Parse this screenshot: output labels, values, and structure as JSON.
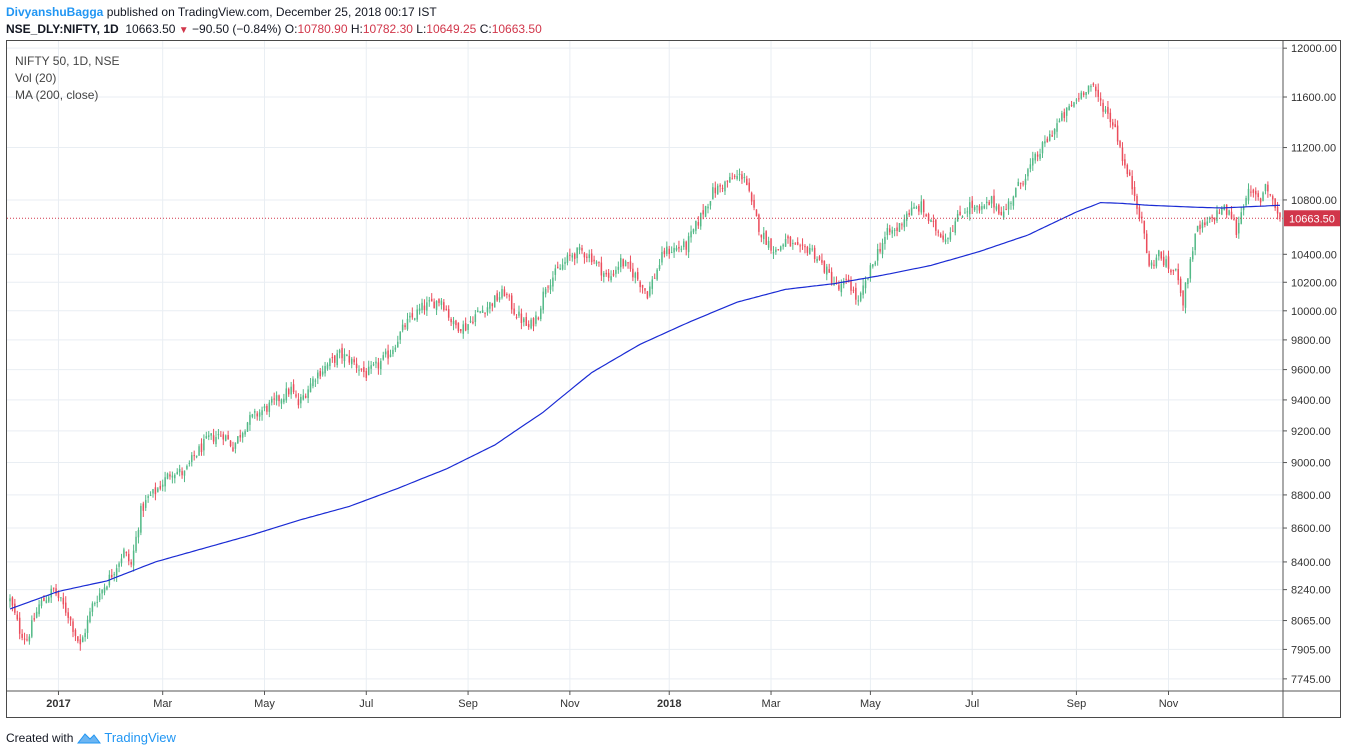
{
  "header": {
    "author": "DivyanshuBagga",
    "published": "published on TradingView.com, December 25, 2018 00:17 IST",
    "symbol": "NSE_DLY:NIFTY, 1D",
    "last": "10663.50",
    "change_arrow": "▼",
    "change": "−90.50 (−0.84%)",
    "o_label": "O:",
    "o_value": "10780.90",
    "h_label": "H:",
    "h_value": "10782.30",
    "l_label": "L:",
    "l_value": "10649.25",
    "c_label": "C:",
    "c_value": "10663.50"
  },
  "legend": {
    "line1": "NIFTY 50, 1D, NSE",
    "line2": "Vol (20)",
    "line3": "MA (200, close)"
  },
  "footer": {
    "created_with": "Created with",
    "brand": "TradingView"
  },
  "colors": {
    "up": "#53b987",
    "down": "#eb4d5c",
    "ma": "#1a2bd4",
    "grid": "#e9eef3",
    "price_line": "#d1364a"
  },
  "chart_data": {
    "type": "candlestick",
    "title": "NIFTY 50, 1D, NSE",
    "y_scale": "log",
    "ylim": [
      7680,
      12060
    ],
    "y_ticks": [
      "12000.00",
      "11600.00",
      "11200.00",
      "10800.00",
      "10400.00",
      "10200.00",
      "10000.00",
      "9800.00",
      "9600.00",
      "9400.00",
      "9200.00",
      "9000.00",
      "8800.00",
      "8600.00",
      "8400.00",
      "8240.00",
      "8065.00",
      "7905.00",
      "7745.00"
    ],
    "x_ticks": [
      "2017",
      "Mar",
      "May",
      "Jul",
      "Sep",
      "Nov",
      "2018",
      "Mar",
      "May",
      "Jul",
      "Sep",
      "Nov"
    ],
    "x_tick_days": [
      20,
      63,
      105,
      147,
      189,
      231,
      272,
      314,
      355,
      397,
      440,
      478
    ],
    "n_days": 525,
    "last_price": "10663.50",
    "close_anchors": [
      [
        0,
        8180
      ],
      [
        4,
        8010
      ],
      [
        7,
        7960
      ],
      [
        12,
        8150
      ],
      [
        18,
        8240
      ],
      [
        24,
        8100
      ],
      [
        29,
        7920
      ],
      [
        34,
        8150
      ],
      [
        38,
        8240
      ],
      [
        42,
        8330
      ],
      [
        47,
        8460
      ],
      [
        50,
        8380
      ],
      [
        54,
        8700
      ],
      [
        57,
        8780
      ],
      [
        60,
        8820
      ],
      [
        67,
        8950
      ],
      [
        72,
        8930
      ],
      [
        76,
        9040
      ],
      [
        82,
        9150
      ],
      [
        88,
        9180
      ],
      [
        92,
        9100
      ],
      [
        98,
        9260
      ],
      [
        103,
        9320
      ],
      [
        107,
        9360
      ],
      [
        112,
        9420
      ],
      [
        116,
        9470
      ],
      [
        119,
        9370
      ],
      [
        126,
        9560
      ],
      [
        136,
        9700
      ],
      [
        140,
        9670
      ],
      [
        147,
        9570
      ],
      [
        152,
        9630
      ],
      [
        157,
        9720
      ],
      [
        163,
        9900
      ],
      [
        170,
        10020
      ],
      [
        178,
        10080
      ],
      [
        183,
        9900
      ],
      [
        188,
        9890
      ],
      [
        192,
        9970
      ],
      [
        197,
        10030
      ],
      [
        204,
        10130
      ],
      [
        208,
        10000
      ],
      [
        214,
        9880
      ],
      [
        218,
        9980
      ],
      [
        221,
        10180
      ],
      [
        226,
        10280
      ],
      [
        232,
        10400
      ],
      [
        236,
        10420
      ],
      [
        240,
        10380
      ],
      [
        247,
        10220
      ],
      [
        252,
        10350
      ],
      [
        258,
        10250
      ],
      [
        263,
        10120
      ],
      [
        270,
        10420
      ],
      [
        279,
        10460
      ],
      [
        284,
        10640
      ],
      [
        290,
        10860
      ],
      [
        298,
        10960
      ],
      [
        303,
        10990
      ],
      [
        306,
        10760
      ],
      [
        310,
        10550
      ],
      [
        316,
        10420
      ],
      [
        320,
        10500
      ],
      [
        326,
        10420
      ],
      [
        330,
        10450
      ],
      [
        336,
        10300
      ],
      [
        342,
        10150
      ],
      [
        346,
        10210
      ],
      [
        350,
        10050
      ],
      [
        354,
        10240
      ],
      [
        358,
        10420
      ],
      [
        362,
        10550
      ],
      [
        366,
        10580
      ],
      [
        370,
        10700
      ],
      [
        376,
        10750
      ],
      [
        380,
        10620
      ],
      [
        386,
        10520
      ],
      [
        392,
        10690
      ],
      [
        396,
        10760
      ],
      [
        400,
        10710
      ],
      [
        405,
        10790
      ],
      [
        410,
        10700
      ],
      [
        414,
        10840
      ],
      [
        420,
        11020
      ],
      [
        426,
        11200
      ],
      [
        432,
        11380
      ],
      [
        438,
        11530
      ],
      [
        444,
        11680
      ],
      [
        446,
        11690
      ],
      [
        450,
        11560
      ],
      [
        456,
        11360
      ],
      [
        460,
        11050
      ],
      [
        464,
        10850
      ],
      [
        468,
        10550
      ],
      [
        470,
        10300
      ],
      [
        474,
        10400
      ],
      [
        478,
        10300
      ],
      [
        482,
        10250
      ],
      [
        484,
        10060
      ],
      [
        488,
        10450
      ],
      [
        490,
        10580
      ],
      [
        494,
        10620
      ],
      [
        500,
        10740
      ],
      [
        504,
        10680
      ],
      [
        506,
        10570
      ],
      [
        510,
        10850
      ],
      [
        513,
        10830
      ],
      [
        516,
        10800
      ],
      [
        518,
        10930
      ],
      [
        522,
        10750
      ],
      [
        524,
        10663
      ]
    ],
    "ma200_anchors": [
      [
        0,
        8130
      ],
      [
        20,
        8230
      ],
      [
        40,
        8290
      ],
      [
        60,
        8400
      ],
      [
        80,
        8480
      ],
      [
        100,
        8560
      ],
      [
        120,
        8650
      ],
      [
        140,
        8730
      ],
      [
        160,
        8840
      ],
      [
        180,
        8960
      ],
      [
        200,
        9110
      ],
      [
        220,
        9320
      ],
      [
        240,
        9580
      ],
      [
        260,
        9770
      ],
      [
        280,
        9920
      ],
      [
        300,
        10060
      ],
      [
        320,
        10150
      ],
      [
        340,
        10190
      ],
      [
        360,
        10250
      ],
      [
        380,
        10320
      ],
      [
        400,
        10420
      ],
      [
        420,
        10540
      ],
      [
        440,
        10710
      ],
      [
        450,
        10780
      ],
      [
        458,
        10775
      ],
      [
        470,
        10760
      ],
      [
        490,
        10745
      ],
      [
        500,
        10740
      ],
      [
        524,
        10760
      ]
    ]
  }
}
